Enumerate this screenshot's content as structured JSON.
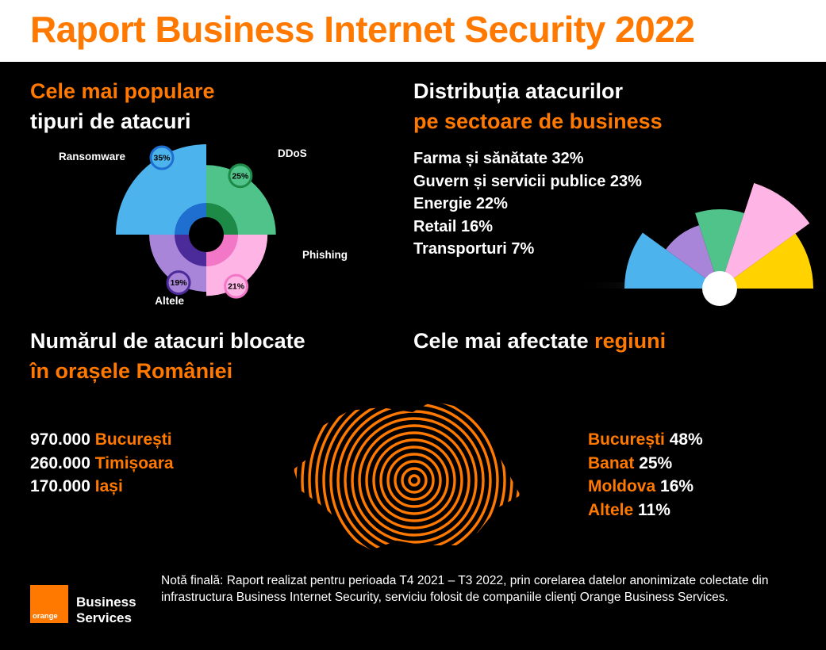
{
  "header": {
    "title": "Raport Business Internet Security 2022"
  },
  "attack_types": {
    "title_line1": "Cele mai populare",
    "title_line2": "tipuri de atacuri"
  },
  "sectors": {
    "title_line1": "Distribuția atacurilor",
    "title_line2": "pe sectoare de business",
    "items": [
      "Farma și sănătate 32%",
      "Guvern și servicii publice 23%",
      "Energie 22%",
      "Retail 16%",
      "Transporturi 7%"
    ]
  },
  "cities": {
    "title_line1": "Numărul de atacuri blocate",
    "title_line2": "în orașele României",
    "items": [
      {
        "count": "970.000",
        "city": "București"
      },
      {
        "count": "260.000",
        "city": "Timișoara"
      },
      {
        "count": "170.000",
        "city": "Iași"
      }
    ]
  },
  "regions": {
    "title_white": "Cele mai afectate",
    "title_orange": "regiuni",
    "items": [
      {
        "name": "București",
        "value": "48%"
      },
      {
        "name": "Banat",
        "value": "25%"
      },
      {
        "name": "Moldova",
        "value": "16%"
      },
      {
        "name": "Altele",
        "value": "11%"
      }
    ]
  },
  "footer": {
    "note": "Notă finală: Raport realizat pentru perioada T4 2021 – T3 2022, prin corelarea datelor anonimizate colectate din infrastructura Business Internet Security, serviciu folosit de companiile clienți Orange Business Services.",
    "logo_text": "orange",
    "brand_line1": "Business",
    "brand_line2": "Services"
  },
  "chart_data": [
    {
      "type": "pie",
      "categories": [
        "Ransomware",
        "DDoS",
        "Phishing",
        "Altele"
      ],
      "values": [
        35,
        25,
        21,
        19
      ],
      "value_labels": [
        "35%",
        "25%",
        "21%",
        "19%"
      ],
      "colors": [
        "#4db3ec",
        "#4fc38a",
        "#ffb4e6",
        "#a885d8"
      ],
      "colors_inner": [
        "#1f6fd0",
        "#1d8a48",
        "#f277c6",
        "#4b2b9a"
      ]
    },
    {
      "type": "pie",
      "categories": [
        "Farma și sănătate",
        "Guvern și servicii publice",
        "Energie",
        "Retail",
        "Transporturi"
      ],
      "values": [
        32,
        23,
        22,
        16,
        7
      ],
      "colors": [
        "#4db3ec",
        "#a885d8",
        "#4fc38a",
        "#ffb4e6",
        "#ffd200"
      ]
    }
  ]
}
